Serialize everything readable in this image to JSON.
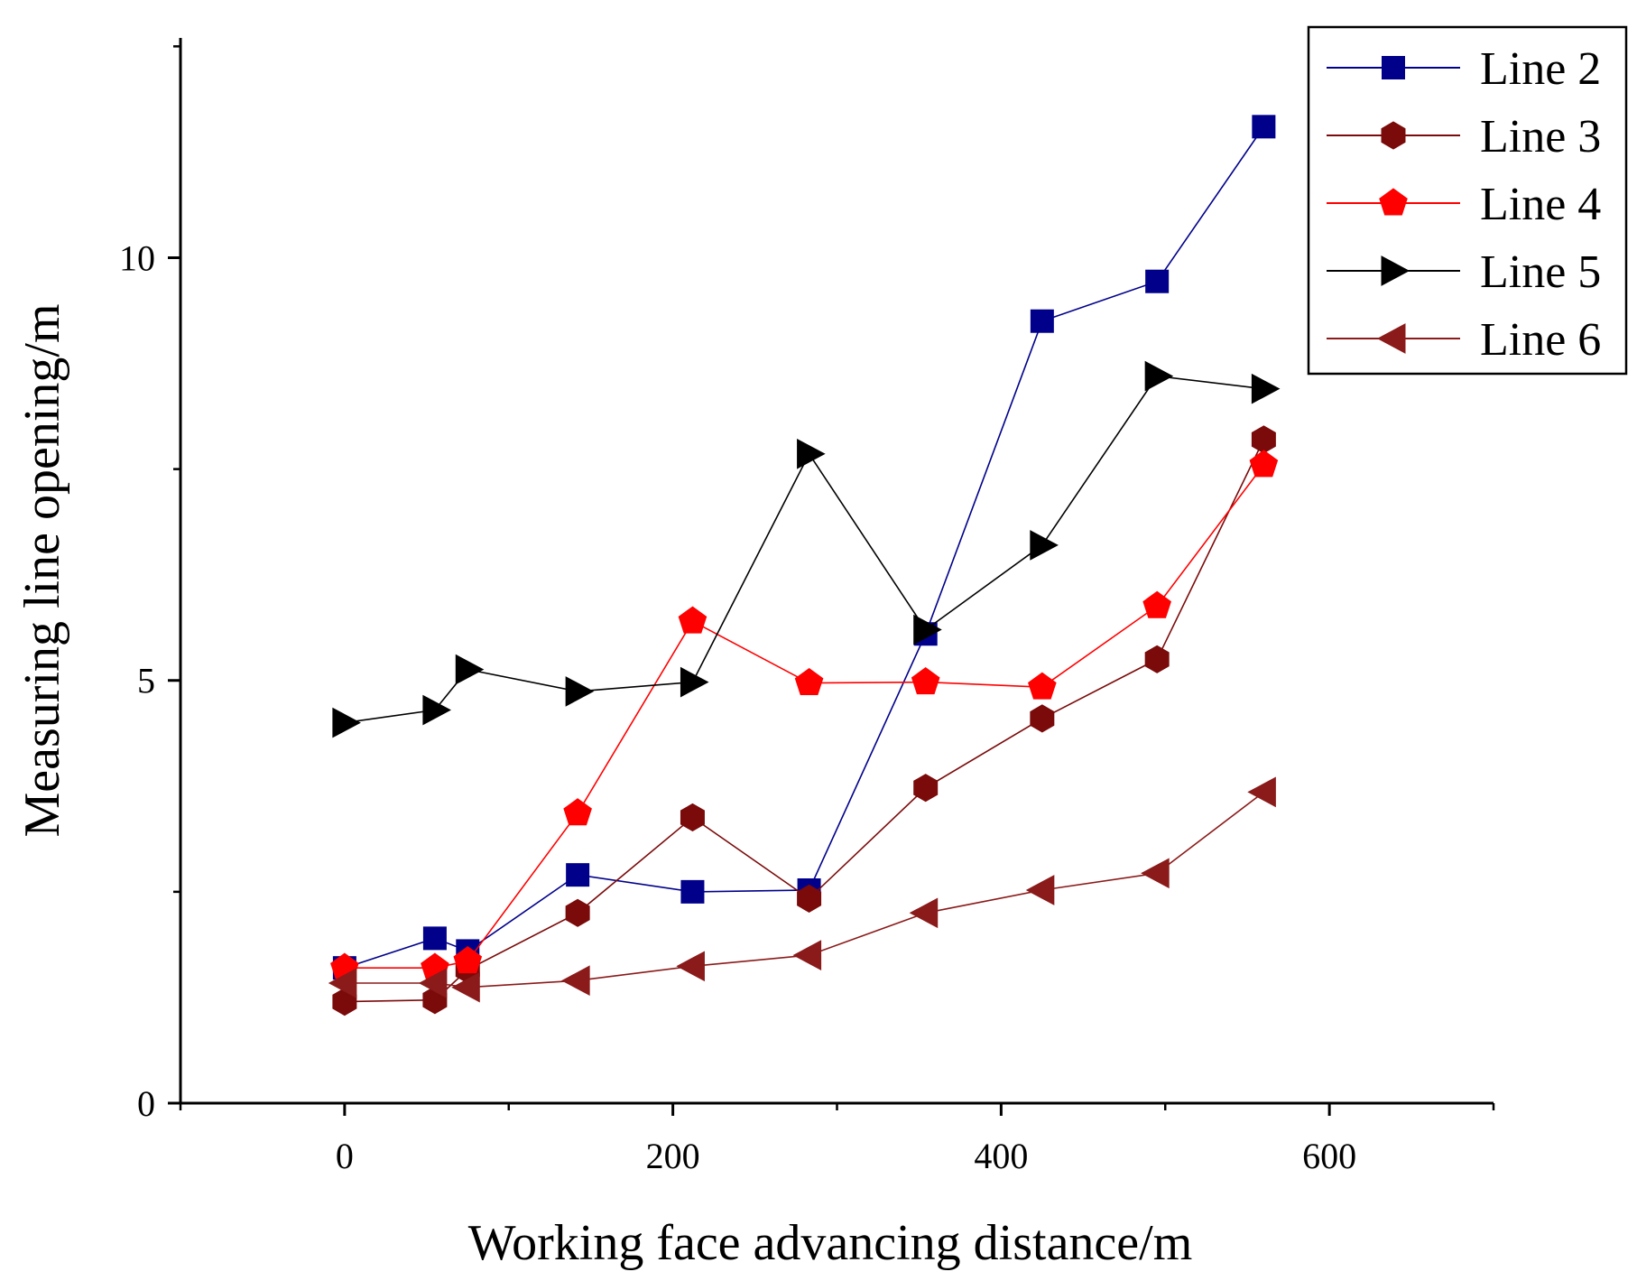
{
  "chart_data": {
    "type": "line",
    "title": "",
    "xlabel": "Working face advancing distance/m",
    "ylabel": "Measuring line opening/m",
    "xlim": [
      -100,
      700
    ],
    "ylim": [
      0,
      12.6
    ],
    "xticks": [
      0,
      200,
      400,
      600
    ],
    "yticks": [
      0,
      5,
      10
    ],
    "x_minor_step": 100,
    "y_minor_step": 2.5,
    "grid": false,
    "legend_position": "top-right",
    "x": [
      0,
      55,
      75,
      142,
      212,
      283,
      354,
      425,
      495,
      560
    ],
    "series": [
      {
        "name": "Line 2",
        "color": "#00008b",
        "marker": "square",
        "values": [
          1.6,
          1.95,
          1.8,
          2.7,
          2.5,
          2.52,
          5.55,
          9.25,
          9.72,
          11.55
        ]
      },
      {
        "name": "Line 3",
        "color": "#7b0a0a",
        "marker": "hexagon",
        "values": [
          1.2,
          1.22,
          1.58,
          2.25,
          3.38,
          2.42,
          3.73,
          4.55,
          5.25,
          7.85
        ]
      },
      {
        "name": "Line 4",
        "color": "#ff0000",
        "marker": "pentagon",
        "values": [
          1.6,
          1.6,
          1.68,
          3.43,
          5.7,
          4.97,
          4.98,
          4.92,
          5.88,
          7.55
        ]
      },
      {
        "name": "Line 5",
        "color": "#000000",
        "marker": "triangle-right",
        "values": [
          4.5,
          4.65,
          5.13,
          4.87,
          4.98,
          7.68,
          5.6,
          6.6,
          8.6,
          8.45
        ]
      },
      {
        "name": "Line 6",
        "color": "#8b1a1a",
        "marker": "triangle-left",
        "values": [
          1.42,
          1.42,
          1.37,
          1.45,
          1.62,
          1.75,
          2.25,
          2.52,
          2.72,
          3.68
        ]
      }
    ]
  }
}
